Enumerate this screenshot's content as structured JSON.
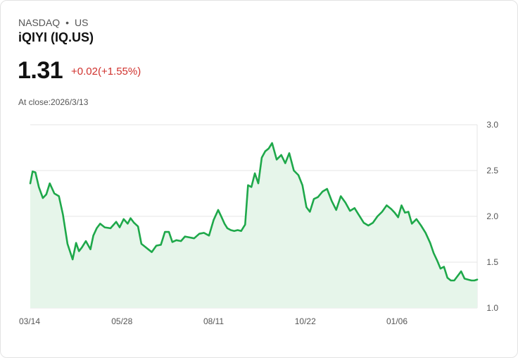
{
  "header": {
    "exchange": "NASDAQ",
    "separator": "•",
    "region": "US",
    "name": "iQIYI (IQ.US)",
    "price": "1.31",
    "change": "+0.02(+1.55%)",
    "close_label": "At close:2026/3/13"
  },
  "colors": {
    "line": "#1ea84a",
    "fill": "#e6f5ea",
    "change": "#d0312d",
    "grid": "#e5e5e5"
  },
  "chart_data": {
    "type": "area",
    "title": "",
    "xlabel": "",
    "ylabel": "",
    "ylim": [
      1.0,
      3.0
    ],
    "y_ticks": [
      3.0,
      2.5,
      2.0,
      1.5,
      1.0
    ],
    "y_tick_labels": [
      "3.0",
      "2.5",
      "2.0",
      "1.5",
      "1.0"
    ],
    "x_ticks": [
      0,
      16,
      32,
      48,
      64
    ],
    "x_tick_labels": [
      "03/14",
      "05/28",
      "08/11",
      "10/22",
      "01/06"
    ],
    "x_domain": [
      0,
      78
    ],
    "series": [
      {
        "name": "IQ.US",
        "x": [
          0,
          0.4,
          0.9,
          1.5,
          2.2,
          2.8,
          3.4,
          4.2,
          5.0,
          5.7,
          6.5,
          7.4,
          8.0,
          8.5,
          9.0,
          9.7,
          10.5,
          11.0,
          11.6,
          12.2,
          13.0,
          14.0,
          15.0,
          15.6,
          16.3,
          17.0,
          17.5,
          18.1,
          18.8,
          19.4,
          20.0,
          20.6,
          21.2,
          22.0,
          22.8,
          23.5,
          24.2,
          24.8,
          25.5,
          26.3,
          27.0,
          27.8,
          28.6,
          29.5,
          30.3,
          31.2,
          32.0,
          32.8,
          33.4,
          33.9,
          34.4,
          35.0,
          35.6,
          36.2,
          36.8,
          37.5,
          38.0,
          38.6,
          39.2,
          39.8,
          40.4,
          41.0,
          41.6,
          42.2,
          43.0,
          43.8,
          44.5,
          45.2,
          46.0,
          46.8,
          47.5,
          48.2,
          48.8,
          49.5,
          50.2,
          51.0,
          51.8,
          52.6,
          53.4,
          54.2,
          55.0,
          55.8,
          56.6,
          57.4,
          58.2,
          59.0,
          59.8,
          60.6,
          61.4,
          62.2,
          63.0,
          63.6,
          64.2,
          64.8,
          65.4,
          66.0,
          66.6,
          67.4,
          68.2,
          69.0,
          69.8,
          70.4,
          71.0,
          71.6,
          72.2,
          72.8,
          73.4,
          74.0,
          74.6,
          75.2,
          75.8,
          76.4,
          77.0,
          77.5,
          78.0
        ],
        "values": [
          2.36,
          2.49,
          2.48,
          2.32,
          2.2,
          2.24,
          2.36,
          2.25,
          2.22,
          2.02,
          1.7,
          1.53,
          1.71,
          1.62,
          1.66,
          1.73,
          1.64,
          1.79,
          1.87,
          1.92,
          1.88,
          1.87,
          1.94,
          1.88,
          1.97,
          1.92,
          1.98,
          1.93,
          1.89,
          1.7,
          1.67,
          1.64,
          1.61,
          1.68,
          1.69,
          1.83,
          1.83,
          1.72,
          1.74,
          1.73,
          1.78,
          1.77,
          1.76,
          1.81,
          1.82,
          1.79,
          1.96,
          2.07,
          1.99,
          1.92,
          1.87,
          1.85,
          1.84,
          1.85,
          1.84,
          1.91,
          2.34,
          2.32,
          2.47,
          2.36,
          2.64,
          2.71,
          2.74,
          2.8,
          2.62,
          2.67,
          2.58,
          2.69,
          2.5,
          2.45,
          2.34,
          2.1,
          2.05,
          2.19,
          2.21,
          2.27,
          2.3,
          2.17,
          2.07,
          2.22,
          2.15,
          2.06,
          2.09,
          2.01,
          1.93,
          1.9,
          1.93,
          2.0,
          2.05,
          2.12,
          2.08,
          2.04,
          1.99,
          2.12,
          2.04,
          2.05,
          1.92,
          1.97,
          1.9,
          1.82,
          1.71,
          1.6,
          1.52,
          1.43,
          1.45,
          1.33,
          1.3,
          1.3,
          1.35,
          1.4,
          1.32,
          1.31,
          1.3,
          1.3,
          1.31
        ]
      }
    ]
  }
}
